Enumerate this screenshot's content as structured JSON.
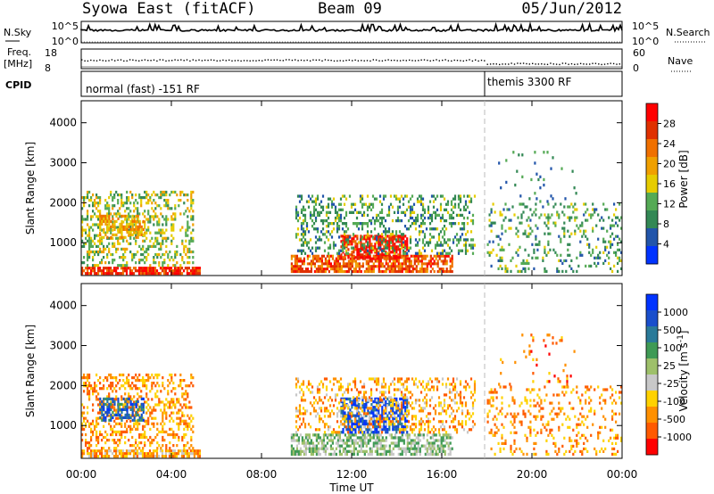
{
  "header": {
    "station": "Syowa East (fitACF)",
    "beam": "Beam 09",
    "date": "05/Jun/2012"
  },
  "noise_panel": {
    "left_label": "N.Sky",
    "right_label": "N.Search",
    "left_ticks": [
      "10^5",
      "10^0"
    ],
    "right_ticks": [
      "10^5",
      "10^0"
    ]
  },
  "freq_panel": {
    "left_label_line1": "Freq.",
    "left_label_line2": "[MHz]",
    "right_label": "Nave",
    "left_ticks": [
      "18",
      "8"
    ],
    "right_ticks": [
      "60",
      "0"
    ]
  },
  "cpid_panel": {
    "label": "CPID",
    "segments": [
      {
        "text": "normal (fast) -151 RF",
        "start_hour": 0
      },
      {
        "text": "themis 3300 RF",
        "start_hour": 18
      }
    ]
  },
  "x_axis": {
    "label": "Time UT",
    "ticks": [
      "00:00",
      "04:00",
      "08:00",
      "12:00",
      "16:00",
      "20:00",
      "00:00"
    ],
    "tick_hours": [
      0,
      4,
      8,
      12,
      16,
      20,
      24
    ]
  },
  "colors": {
    "power_scale": [
      "#0033ff",
      "#2255aa",
      "#338855",
      "#55aa55",
      "#e6cc00",
      "#f0a000",
      "#f07000",
      "#e03000",
      "#ff0000"
    ],
    "velocity_scale": [
      "#0033ff",
      "#1a4fcc",
      "#2a7a99",
      "#3f9a55",
      "#9ec06a",
      "#c8c8c8",
      "#ffd200",
      "#ff9000",
      "#ff5a00",
      "#ff0000"
    ]
  },
  "chart_data": [
    {
      "type": "heatmap",
      "title": "Power",
      "ylabel": "Slant Range [km]",
      "xlabel": "",
      "ylim": [
        180,
        4550
      ],
      "yticks": [
        1000,
        2000,
        3000,
        4000
      ],
      "x_range_hours": [
        0,
        24
      ],
      "colorbar_label": "Power [dB]",
      "colorbar_ticks": [
        "4",
        "8",
        "12",
        "16",
        "20",
        "24",
        "28"
      ],
      "regions": [
        {
          "t0": 0.0,
          "t1": 5.3,
          "r0": 200,
          "r1": 400,
          "level": 7.5,
          "density": 0.85
        },
        {
          "t0": 0.0,
          "t1": 5.0,
          "r0": 400,
          "r1": 2300,
          "level": 3.5,
          "density": 0.35
        },
        {
          "t0": 0.8,
          "t1": 2.8,
          "r0": 1100,
          "r1": 1700,
          "level": 5,
          "density": 0.55
        },
        {
          "t0": 9.3,
          "t1": 16.5,
          "r0": 250,
          "r1": 700,
          "level": 6.5,
          "density": 0.7
        },
        {
          "t0": 11.5,
          "t1": 14.5,
          "r0": 600,
          "r1": 1200,
          "level": 7.5,
          "density": 0.7
        },
        {
          "t0": 9.5,
          "t1": 17.5,
          "r0": 700,
          "r1": 2200,
          "level": 2.5,
          "density": 0.3
        },
        {
          "t0": 18.0,
          "t1": 24.0,
          "r0": 250,
          "r1": 2000,
          "level": 2.5,
          "density": 0.18
        },
        {
          "t0": 18.5,
          "t1": 22.0,
          "r0": 2000,
          "r1": 3300,
          "level": 2.0,
          "density": 0.05
        }
      ]
    },
    {
      "type": "heatmap",
      "title": "Velocity",
      "ylabel": "Slant Range [km]",
      "xlabel": "Time UT",
      "ylim": [
        180,
        4550
      ],
      "yticks": [
        1000,
        2000,
        3000,
        4000
      ],
      "x_range_hours": [
        0,
        24
      ],
      "colorbar_label": "Velocity [m s-1]",
      "colorbar_ticks": [
        "1000",
        "500",
        "100",
        "25",
        "-25",
        "-100",
        "-500",
        "-1000"
      ],
      "regions": [
        {
          "t0": 0.0,
          "t1": 5.3,
          "r0": 200,
          "r1": 400,
          "level": 6.5,
          "density": 0.75
        },
        {
          "t0": 0.0,
          "t1": 5.0,
          "r0": 400,
          "r1": 2300,
          "level": 7.0,
          "density": 0.35
        },
        {
          "t0": 0.8,
          "t1": 2.8,
          "r0": 1100,
          "r1": 1700,
          "level": 1.5,
          "density": 0.5
        },
        {
          "t0": 9.3,
          "t1": 16.5,
          "r0": 250,
          "r1": 800,
          "level": 4.0,
          "density": 0.6
        },
        {
          "t0": 11.5,
          "t1": 14.5,
          "r0": 800,
          "r1": 1700,
          "level": 1.0,
          "density": 0.6
        },
        {
          "t0": 9.5,
          "t1": 17.5,
          "r0": 800,
          "r1": 2200,
          "level": 6.5,
          "density": 0.3
        },
        {
          "t0": 18.0,
          "t1": 24.0,
          "r0": 250,
          "r1": 2000,
          "level": 7.0,
          "density": 0.18
        },
        {
          "t0": 18.5,
          "t1": 22.0,
          "r0": 2000,
          "r1": 3300,
          "level": 7.5,
          "density": 0.05
        }
      ]
    }
  ]
}
